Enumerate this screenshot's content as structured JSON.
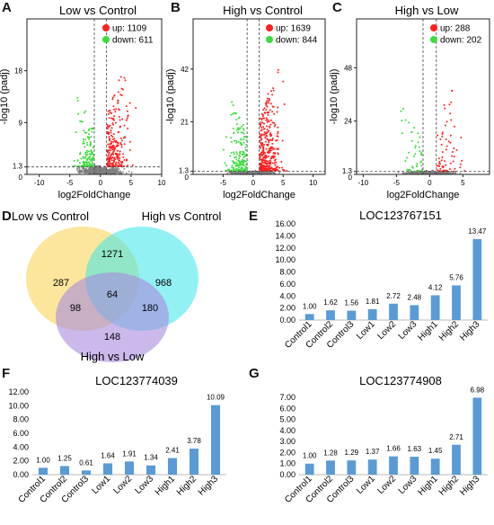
{
  "panels": {
    "A": {
      "letter": "A",
      "title": "Low vs Control",
      "xlabel": "log2FoldChange",
      "ylabel": "-log10 (padj)"
    },
    "B": {
      "letter": "B",
      "title": "High vs Control",
      "xlabel": "log2FoldChange",
      "ylabel": "-log10 (padj)"
    },
    "C": {
      "letter": "C",
      "title": "High vs Low",
      "xlabel": "log2FoldChange",
      "ylabel": "-log10 (padj)"
    },
    "D": {
      "letter": "D"
    },
    "E": {
      "letter": "E",
      "title": "LOC123767151"
    },
    "F": {
      "letter": "F",
      "title": "LOC123774039"
    },
    "G": {
      "letter": "G",
      "title": "LOC123774908"
    }
  },
  "colors": {
    "up": "#ff2020",
    "down": "#3ddc3d",
    "ns": "#7f7f7f",
    "bar": "#5b9bd5",
    "venn_low": "#f7d24a",
    "venn_high": "#38e6ea",
    "venn_hl": "#a98be0"
  },
  "chart_data": [
    {
      "type": "scatter",
      "id": "A",
      "title": "Low vs Control",
      "xlabel": "log2FoldChange",
      "ylabel": "-log10 (padj)",
      "xlim": [
        -12,
        10
      ],
      "ylim": [
        0,
        27
      ],
      "xticks": [
        -10,
        -5,
        0,
        5,
        10
      ],
      "yticks": [
        0,
        1.3,
        9,
        18
      ],
      "threshold_lines": {
        "x": [
          -1,
          1
        ],
        "y": 1.3
      },
      "legend": [
        {
          "name": "up",
          "count": 1109,
          "text": "up: 1109"
        },
        {
          "name": "down",
          "count": 611,
          "text": "down: 611"
        }
      ],
      "legend_position": "top-right"
    },
    {
      "type": "scatter",
      "id": "B",
      "title": "High vs Control",
      "xlabel": "log2FoldChange",
      "ylabel": "-log10 (padj)",
      "xlim": [
        -10,
        12
      ],
      "ylim": [
        0,
        62
      ],
      "xticks": [
        -5,
        0,
        5,
        10
      ],
      "yticks": [
        0,
        1.3,
        21,
        42
      ],
      "threshold_lines": {
        "x": [
          -1,
          1
        ],
        "y": 1.3
      },
      "legend": [
        {
          "name": "up",
          "count": 1639,
          "text": "up: 1639"
        },
        {
          "name": "down",
          "count": 844,
          "text": "down: 844"
        }
      ],
      "legend_position": "top-right"
    },
    {
      "type": "scatter",
      "id": "C",
      "title": "High vs Low",
      "xlabel": "log2FoldChange",
      "ylabel": "-log10 (padj)",
      "xlim": [
        -11,
        9
      ],
      "ylim": [
        0,
        70
      ],
      "xticks": [
        -10,
        -5,
        0,
        5
      ],
      "yticks": [
        0,
        1.3,
        24,
        48
      ],
      "threshold_lines": {
        "x": [
          -1,
          1
        ],
        "y": 1.3
      },
      "legend": [
        {
          "name": "up",
          "count": 288,
          "text": "up: 288"
        },
        {
          "name": "down",
          "count": 202,
          "text": "down: 202"
        }
      ],
      "legend_position": "top-right"
    },
    {
      "type": "venn",
      "id": "D",
      "sets": [
        "Low vs Control",
        "High vs Control",
        "High vs Low"
      ],
      "regions": {
        "low_only": 287,
        "high_only": 968,
        "hl_only": 148,
        "low_high": 1271,
        "low_hl": 98,
        "high_hl": 180,
        "all": 64
      }
    },
    {
      "type": "bar",
      "id": "E",
      "title": "LOC123767151",
      "categories": [
        "Control1",
        "Control2",
        "Control3",
        "Low1",
        "Low2",
        "Low3",
        "High1",
        "High2",
        "High3"
      ],
      "values": [
        1.0,
        1.62,
        1.56,
        1.81,
        2.72,
        2.48,
        4.12,
        5.76,
        13.47
      ],
      "labels": [
        "1.00",
        "1.62",
        "1.56",
        "1.81",
        "2.72",
        "2.48",
        "4.12",
        "5.76",
        "13.47"
      ],
      "ylim": [
        0,
        16
      ],
      "yticks": [
        "0.00",
        "2.00",
        "4.00",
        "6.00",
        "8.00",
        "10.00",
        "12.00",
        "14.00",
        "16.00"
      ]
    },
    {
      "type": "bar",
      "id": "F",
      "title": "LOC123774039",
      "categories": [
        "Control1",
        "Control2",
        "Control3",
        "Low1",
        "Low2",
        "Low3",
        "High1",
        "High2",
        "High3"
      ],
      "values": [
        1.0,
        1.25,
        0.61,
        1.64,
        1.91,
        1.34,
        2.41,
        3.78,
        10.09
      ],
      "labels": [
        "1.00",
        "1.25",
        "0.61",
        "1.64",
        "1.91",
        "1.34",
        "2.41",
        "3.78",
        "10.09"
      ],
      "ylim": [
        0,
        12
      ],
      "yticks": [
        "0.00",
        "2.00",
        "4.00",
        "6.00",
        "8.00",
        "10.00",
        "12.00"
      ]
    },
    {
      "type": "bar",
      "id": "G",
      "title": "LOC123774908",
      "categories": [
        "Control1",
        "Control2",
        "Control3",
        "Low1",
        "Low2",
        "Low3",
        "High1",
        "High2",
        "High3"
      ],
      "values": [
        1.0,
        1.28,
        1.29,
        1.37,
        1.66,
        1.63,
        1.45,
        2.71,
        6.98
      ],
      "labels": [
        "1.00",
        "1.28",
        "1.29",
        "1.37",
        "1.66",
        "1.63",
        "1.45",
        "2.71",
        "6.98"
      ],
      "ylim": [
        0,
        7.5
      ],
      "yticks": [
        "0.00",
        "1.00",
        "2.00",
        "3.00",
        "4.00",
        "5.00",
        "6.00",
        "7.00"
      ]
    }
  ]
}
